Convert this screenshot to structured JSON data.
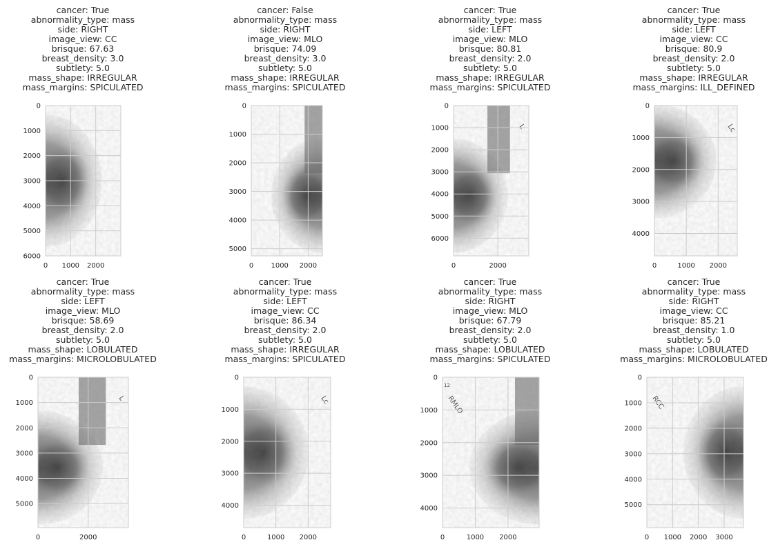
{
  "panels": [
    {
      "title_lines": [
        "cancer: True",
        "abnormality_type: mass",
        "side: RIGHT",
        "image_view: CC",
        "brisque: 67.63",
        "breast_density: 3.0",
        "subtlety: 5.0",
        "mass_shape: IRREGULAR",
        "mass_margins: SPICULATED"
      ],
      "xlim": [
        0,
        3000
      ],
      "ylim": [
        6000,
        0
      ],
      "x_ticks": [
        0,
        1000,
        2000
      ],
      "y_ticks": [
        0,
        1000,
        2000,
        3000,
        4000,
        5000,
        6000
      ],
      "side": "RIGHT",
      "view": "CC",
      "corner_label": ""
    },
    {
      "title_lines": [
        "cancer: False",
        "abnormality_type: mass",
        "side: RIGHT",
        "image_view: MLO",
        "brisque: 74.09",
        "breast_density: 3.0",
        "subtlety: 5.0",
        "mass_shape: IRREGULAR",
        "mass_margins: SPICULATED"
      ],
      "xlim": [
        0,
        2500
      ],
      "ylim": [
        5250,
        0
      ],
      "x_ticks": [
        0,
        1000,
        2000
      ],
      "y_ticks": [
        0,
        1000,
        2000,
        3000,
        4000,
        5000
      ],
      "side": "RIGHT",
      "view": "MLO",
      "corner_label": ""
    },
    {
      "title_lines": [
        "cancer: True",
        "abnormality_type: mass",
        "side: LEFT",
        "image_view: MLO",
        "brisque: 80.81",
        "breast_density: 2.0",
        "subtlety: 5.0",
        "mass_shape: IRREGULAR",
        "mass_margins: SPICULATED"
      ],
      "xlim": [
        0,
        3400
      ],
      "ylim": [
        6800,
        0
      ],
      "x_ticks": [
        0,
        2000
      ],
      "y_ticks": [
        0,
        1000,
        2000,
        3000,
        4000,
        5000,
        6000
      ],
      "side": "LEFT",
      "view": "MLO",
      "corner_label": "L"
    },
    {
      "title_lines": [
        "cancer: True",
        "abnormality_type: mass",
        "side: LEFT",
        "image_view: CC",
        "brisque: 80.9",
        "breast_density: 2.0",
        "subtlety: 5.0",
        "mass_shape: IRREGULAR",
        "mass_margins: ILL_DEFINED"
      ],
      "xlim": [
        0,
        2600
      ],
      "ylim": [
        4700,
        0
      ],
      "x_ticks": [
        0,
        1000,
        2000
      ],
      "y_ticks": [
        0,
        1000,
        2000,
        3000,
        4000
      ],
      "side": "LEFT",
      "view": "CC",
      "corner_label": "Lc"
    },
    {
      "title_lines": [
        "cancer: True",
        "abnormality_type: mass",
        "side: LEFT",
        "image_view: MLO",
        "brisque: 58.69",
        "breast_density: 2.0",
        "subtlety: 5.0",
        "mass_shape: LOBULATED",
        "mass_margins: MICROLOBULATED"
      ],
      "xlim": [
        0,
        3600
      ],
      "ylim": [
        5950,
        0
      ],
      "x_ticks": [
        0,
        2000
      ],
      "y_ticks": [
        0,
        1000,
        2000,
        3000,
        4000,
        5000
      ],
      "side": "LEFT",
      "view": "MLO",
      "corner_label": "L"
    },
    {
      "title_lines": [
        "cancer: True",
        "abnormality_type: mass",
        "side: LEFT",
        "image_view: CC",
        "brisque: 86.34",
        "breast_density: 2.0",
        "subtlety: 5.0",
        "mass_shape: IRREGULAR",
        "mass_margins: SPICULATED"
      ],
      "xlim": [
        0,
        2700
      ],
      "ylim": [
        4700,
        0
      ],
      "x_ticks": [
        0,
        1000,
        2000
      ],
      "y_ticks": [
        0,
        1000,
        2000,
        3000,
        4000
      ],
      "side": "LEFT",
      "view": "CC",
      "corner_label": "Lc"
    },
    {
      "title_lines": [
        "cancer: True",
        "abnormality_type: mass",
        "side: RIGHT",
        "image_view: MLO",
        "brisque: 67.79",
        "breast_density: 2.0",
        "subtlety: 5.0",
        "mass_shape: LOBULATED",
        "mass_margins: SPICULATED"
      ],
      "xlim": [
        0,
        2950
      ],
      "ylim": [
        4600,
        0
      ],
      "x_ticks": [
        0,
        1000,
        2000
      ],
      "y_ticks": [
        0,
        1000,
        2000,
        3000,
        4000
      ],
      "side": "RIGHT",
      "view": "MLO",
      "corner_label": "RMLO",
      "extra_label": "12"
    },
    {
      "title_lines": [
        "cancer: True",
        "abnormality_type: mass",
        "side: RIGHT",
        "image_view: CC",
        "brisque: 85.21",
        "breast_density: 1.0",
        "subtlety: 5.0",
        "mass_shape: LOBULATED",
        "mass_margins: MICROLOBULATED"
      ],
      "xlim": [
        0,
        3750
      ],
      "ylim": [
        5900,
        0
      ],
      "x_ticks": [
        0,
        1000,
        2000,
        3000
      ],
      "y_ticks": [
        0,
        1000,
        2000,
        3000,
        4000,
        5000
      ],
      "side": "RIGHT",
      "view": "CC",
      "corner_label": "RCC"
    }
  ]
}
